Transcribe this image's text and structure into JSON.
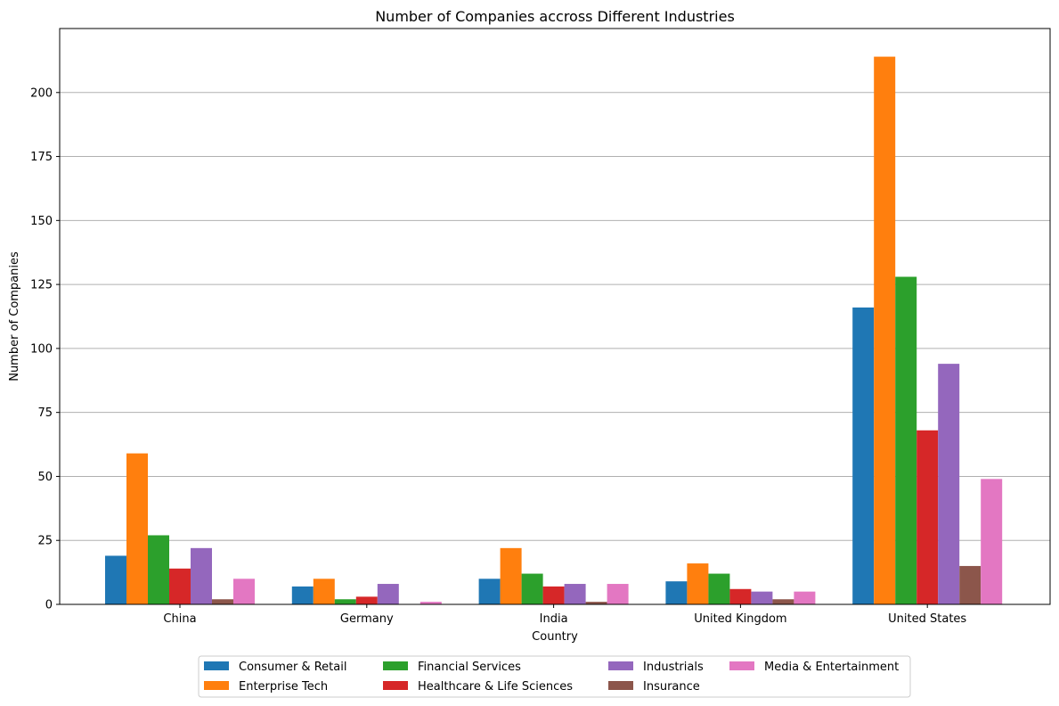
{
  "chart_data": {
    "type": "bar",
    "title": "Number of Companies accross Different Industries",
    "xlabel": "Country",
    "ylabel": "Number of Companies",
    "categories": [
      "China",
      "Germany",
      "India",
      "United Kingdom",
      "United States"
    ],
    "ylim": [
      0,
      225
    ],
    "yticks": [
      0,
      25,
      50,
      75,
      100,
      125,
      150,
      175,
      200
    ],
    "grid": "y",
    "legend_placement": "bottom-center",
    "series": [
      {
        "name": "Consumer & Retail",
        "color": "#1f77b4",
        "values": [
          19,
          7,
          10,
          9,
          116
        ]
      },
      {
        "name": "Enterprise Tech",
        "color": "#ff7f0e",
        "values": [
          59,
          10,
          22,
          16,
          214
        ]
      },
      {
        "name": "Financial Services",
        "color": "#2ca02c",
        "values": [
          27,
          2,
          12,
          12,
          128
        ]
      },
      {
        "name": "Healthcare & Life Sciences",
        "color": "#d62728",
        "values": [
          14,
          3,
          7,
          6,
          68
        ]
      },
      {
        "name": "Industrials",
        "color": "#9467bd",
        "values": [
          22,
          8,
          8,
          5,
          94
        ]
      },
      {
        "name": "Insurance",
        "color": "#8c564b",
        "values": [
          2,
          0,
          1,
          2,
          15
        ]
      },
      {
        "name": "Media & Entertainment",
        "color": "#e377c2",
        "values": [
          10,
          1,
          8,
          5,
          49
        ]
      }
    ]
  }
}
